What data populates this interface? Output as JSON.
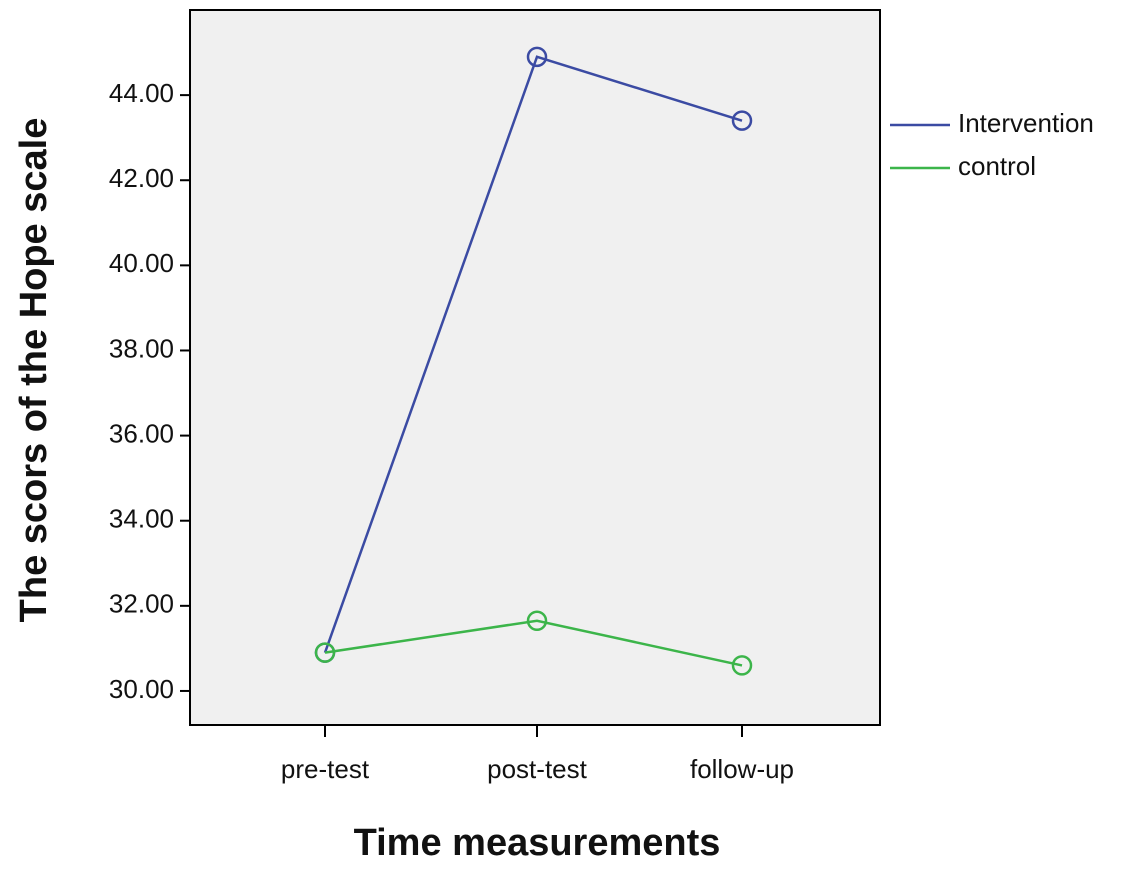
{
  "chart_data": {
    "type": "line",
    "ylabel": "The scors of the Hope scale",
    "xlabel": "Time measurements",
    "categories": [
      "pre-test",
      "post-test",
      "follow-up"
    ],
    "series": [
      {
        "name": "Intervention",
        "color": "#3b4ba3",
        "values": [
          30.9,
          44.9,
          43.4
        ]
      },
      {
        "name": "control",
        "color": "#3cb54a",
        "values": [
          30.9,
          31.65,
          30.6
        ]
      }
    ],
    "ylim": [
      29.2,
      46
    ],
    "yticks": [
      {
        "value": 30,
        "label": "30.00"
      },
      {
        "value": 32,
        "label": "32.00"
      },
      {
        "value": 34,
        "label": "34.00"
      },
      {
        "value": 36,
        "label": "36.00"
      },
      {
        "value": 38,
        "label": "38.00"
      },
      {
        "value": 40,
        "label": "40.00"
      },
      {
        "value": 42,
        "label": "42.00"
      },
      {
        "value": 44,
        "label": "44.00"
      }
    ],
    "legend": "right"
  }
}
